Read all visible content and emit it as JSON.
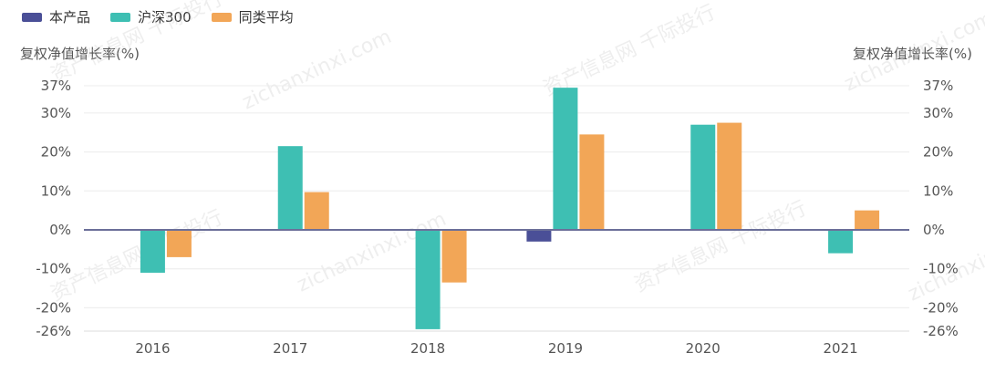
{
  "chart_data": {
    "type": "bar",
    "categories": [
      "2016",
      "2017",
      "2018",
      "2019",
      "2020",
      "2021"
    ],
    "series": [
      {
        "name": "本产品",
        "color": "#4a4f97",
        "values": [
          null,
          null,
          null,
          -3,
          null,
          null
        ]
      },
      {
        "name": "沪深300",
        "color": "#3ebfb3",
        "values": [
          -11,
          21.5,
          -25.5,
          36.5,
          27,
          -6
        ]
      },
      {
        "name": "同类平均",
        "color": "#f2a657",
        "values": [
          -7,
          9.7,
          -13.5,
          24.5,
          27.5,
          5
        ]
      }
    ],
    "ylabel_left": "复权净值增长率(%)",
    "ylabel_right": "复权净值增长率(%)",
    "ylim": [
      -26,
      37
    ],
    "yticks": [
      "37%",
      "30%",
      "20%",
      "10%",
      "0%",
      "-10%",
      "-20%",
      "-26%"
    ],
    "ytick_values": [
      37,
      30,
      20,
      10,
      0,
      -10,
      -20,
      -26
    ],
    "grid": true,
    "legend_position": "top-left"
  },
  "watermark": {
    "cn": "资产信息网 千际投行",
    "en": "zichanxinxi.com"
  }
}
